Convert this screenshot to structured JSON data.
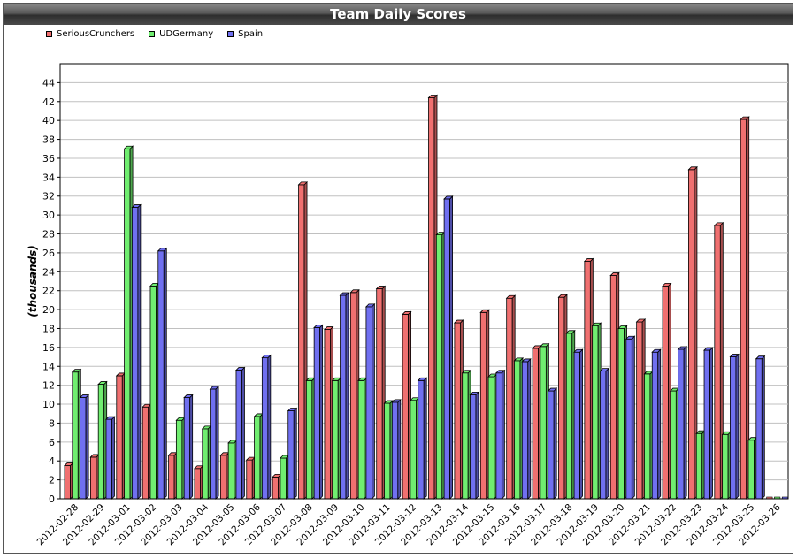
{
  "window": {
    "title": "Team Daily Scores"
  },
  "chart_data": {
    "type": "bar",
    "title": "Team Daily Scores",
    "xlabel": "",
    "ylabel": "(thousands)",
    "ylim": [
      0,
      46
    ],
    "yticks": [
      0,
      2,
      4,
      6,
      8,
      10,
      12,
      14,
      16,
      18,
      20,
      22,
      24,
      26,
      28,
      30,
      32,
      34,
      36,
      38,
      40,
      42,
      44
    ],
    "grid": true,
    "legend_position": "top-left",
    "categories": [
      "2012-02-28",
      "2012-02-29",
      "2012-03-01",
      "2012-03-02",
      "2012-03-03",
      "2012-03-04",
      "2012-03-05",
      "2012-03-06",
      "2012-03-07",
      "2012-03-08",
      "2012-03-09",
      "2012-03-10",
      "2012-03-11",
      "2012-03-12",
      "2012-03-13",
      "2012-03-14",
      "2012-03-15",
      "2012-03-16",
      "2012-03-17",
      "2012-03-18",
      "2012-03-19",
      "2012-03-20",
      "2012-03-21",
      "2012-03-22",
      "2012-03-23",
      "2012-03-24",
      "2012-03-25",
      "2012-03-26"
    ],
    "series": [
      {
        "name": "SeriousCrunchers",
        "color": "#f07070",
        "values": [
          3.5,
          4.4,
          13.0,
          9.7,
          4.6,
          3.2,
          4.6,
          4.1,
          2.3,
          33.2,
          17.9,
          21.8,
          22.2,
          19.5,
          42.4,
          18.6,
          19.7,
          21.2,
          15.9,
          21.3,
          25.1,
          23.6,
          18.7,
          22.5,
          34.8,
          28.9,
          40.1,
          0
        ]
      },
      {
        "name": "UDGermany",
        "color": "#70ee70",
        "values": [
          13.4,
          12.1,
          37.0,
          22.5,
          8.3,
          7.4,
          5.9,
          8.7,
          4.3,
          12.5,
          12.5,
          12.5,
          10.1,
          10.4,
          27.9,
          13.3,
          12.9,
          14.6,
          16.1,
          17.5,
          18.3,
          18.0,
          13.2,
          11.4,
          6.9,
          6.8,
          6.2,
          0
        ]
      },
      {
        "name": "Spain",
        "color": "#7070f0",
        "values": [
          10.7,
          8.4,
          30.8,
          26.2,
          10.7,
          11.6,
          13.6,
          14.9,
          9.3,
          18.1,
          21.5,
          20.3,
          10.2,
          12.5,
          31.7,
          11.0,
          13.3,
          14.5,
          11.4,
          15.5,
          13.5,
          16.9,
          15.5,
          15.8,
          15.7,
          15.0,
          14.8,
          0
        ]
      }
    ]
  }
}
